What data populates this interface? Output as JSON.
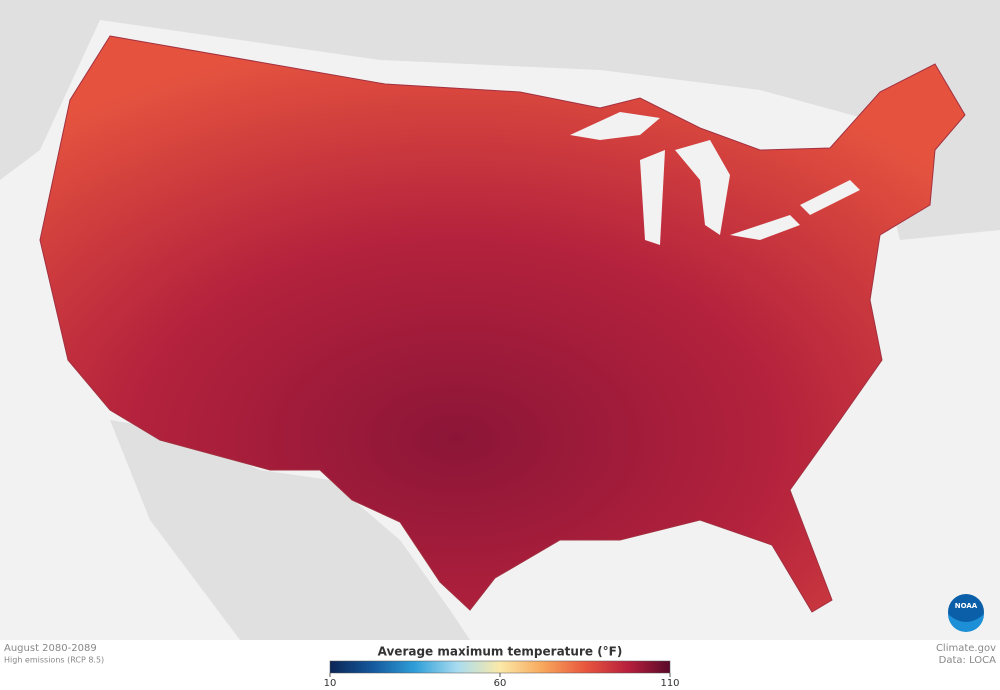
{
  "header": {
    "period": "August 2080-2089",
    "scenario": "High emissions (RCP 8.5)"
  },
  "colorbar": {
    "title": "Average maximum temperature (°F)",
    "range": [
      10,
      110
    ],
    "ticks": [
      10,
      60,
      110
    ],
    "colors": [
      "#0b2556",
      "#14589c",
      "#2f9fd8",
      "#a9dcf0",
      "#fbe9a8",
      "#f7a85c",
      "#e9573e",
      "#b81f3c",
      "#5a0a2a"
    ]
  },
  "credits": {
    "source": "Climate.gov",
    "data": "Data: LOCA",
    "logo": "NOAA"
  }
}
